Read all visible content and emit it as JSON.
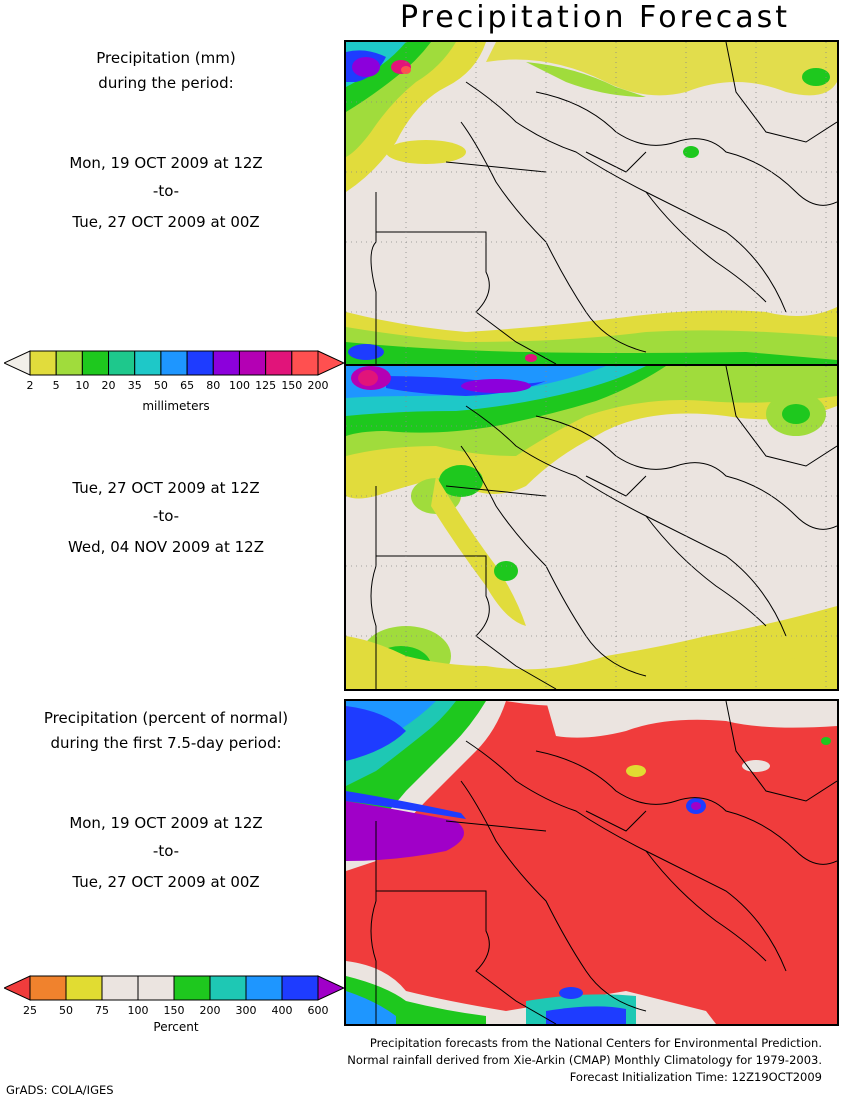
{
  "title": "Precipitation Forecast",
  "panel1": {
    "heading_line1": "Precipitation (mm)",
    "heading_line2": "during the period:",
    "start": "Mon, 19 OCT 2009 at 12Z",
    "to": "-to-",
    "end": "Tue, 27 OCT 2009 at 00Z"
  },
  "panel2": {
    "start": "Tue, 27 OCT 2009 at 12Z",
    "to": "-to-",
    "end": "Wed, 04 NOV 2009 at 12Z"
  },
  "panel3": {
    "heading_line1": "Precipitation (percent of normal)",
    "heading_line2": "during the first 7.5-day period:",
    "start": "Mon, 19 OCT 2009 at 12Z",
    "to": "-to-",
    "end": "Tue, 27 OCT 2009 at 00Z"
  },
  "colorbar_mm": {
    "unit": "millimeters",
    "ticks": [
      "2",
      "5",
      "10",
      "20",
      "35",
      "50",
      "65",
      "80",
      "100",
      "125",
      "150",
      "200"
    ],
    "colors": [
      "#f2efe9",
      "#e1dc3c",
      "#a0dc3c",
      "#1ec81e",
      "#1ec88c",
      "#1ec8c8",
      "#1e96ff",
      "#1e3cff",
      "#8c00dc",
      "#b400b4",
      "#e1147a",
      "#ff5050",
      "#ff5050"
    ]
  },
  "colorbar_pct": {
    "unit": "Percent",
    "ticks": [
      "25",
      "50",
      "75",
      "100",
      "150",
      "200",
      "300",
      "400",
      "600"
    ],
    "colors": [
      "#f03c3c",
      "#f0822d",
      "#e1dc32",
      "#ebe4e0",
      "#ebe4e0",
      "#1ec81e",
      "#1ec8b4",
      "#1e96ff",
      "#1e3cff",
      "#a000c8"
    ]
  },
  "credits": {
    "line1": "Precipitation forecasts from the National Centers for Environmental Prediction.",
    "line2": "Normal rainfall derived from Xie-Arkin (CMAP) Monthly Climatology for 1979-2003.",
    "line3": "Forecast Initialization Time: 12Z19OCT2009"
  },
  "footer": "GrADS: COLA/IGES"
}
